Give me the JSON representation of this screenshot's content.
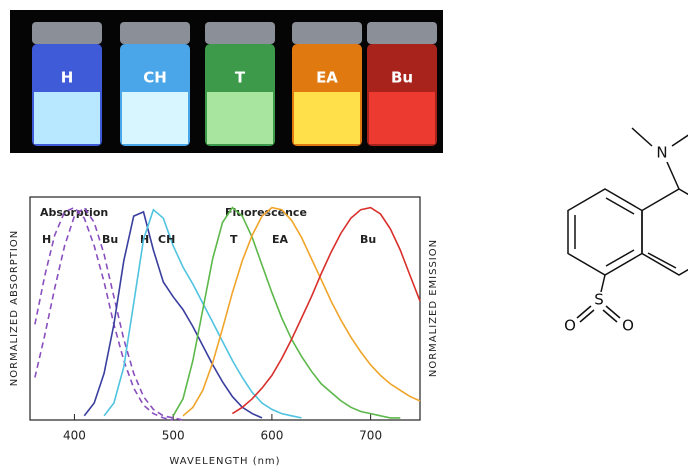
{
  "photo": {
    "labels": [
      "H",
      "CH",
      "T",
      "EA",
      "Bu"
    ]
  },
  "structure": {
    "atoms": [
      "N",
      "S",
      "O",
      "O"
    ]
  },
  "chart_data": {
    "type": "line",
    "annotations": [
      "Absorption",
      "Fluorescence"
    ],
    "xlabel": "WAVELENGTH (nm)",
    "ylabel": "NORMALIZED ABSORPTION",
    "y2label": "NORMALIZED EMISSION",
    "xlim": [
      355,
      750
    ],
    "ylim": [
      0,
      1.05
    ],
    "xticks": [
      400,
      500,
      600,
      700
    ],
    "x": [
      360,
      370,
      380,
      390,
      400,
      410,
      420,
      430,
      440,
      450,
      460,
      470,
      480,
      490,
      500,
      510,
      520,
      530,
      540,
      550,
      560,
      570,
      580,
      590,
      600,
      610,
      620,
      630,
      640,
      650,
      660,
      670,
      680,
      690,
      700,
      710,
      720,
      730,
      740,
      750
    ],
    "series": [
      {
        "name": "H",
        "color": "#8a4fbf",
        "dashed": true,
        "values": [
          0.45,
          0.68,
          0.87,
          0.98,
          1.0,
          0.95,
          0.82,
          0.65,
          0.45,
          0.28,
          0.15,
          0.07,
          0.03,
          0.01,
          0,
          null,
          null,
          null,
          null,
          null,
          null,
          null,
          null,
          null,
          null,
          null,
          null,
          null,
          null,
          null,
          null,
          null,
          null,
          null,
          null,
          null,
          null,
          null,
          null,
          null
        ]
      },
      {
        "name": "Bu",
        "color": "#8a4fbf",
        "dashed": true,
        "values": [
          0.2,
          0.4,
          0.62,
          0.82,
          0.96,
          1.0,
          0.93,
          0.78,
          0.58,
          0.38,
          0.22,
          0.11,
          0.05,
          0.02,
          0.01,
          0,
          null,
          null,
          null,
          null,
          null,
          null,
          null,
          null,
          null,
          null,
          null,
          null,
          null,
          null,
          null,
          null,
          null,
          null,
          null,
          null,
          null,
          null,
          null,
          null
        ]
      },
      {
        "name": "H",
        "color": "#3a3f9e",
        "dashed": false,
        "values": [
          null,
          null,
          null,
          null,
          null,
          0.02,
          0.08,
          0.22,
          0.45,
          0.75,
          0.96,
          0.98,
          0.8,
          0.65,
          0.58,
          0.52,
          0.44,
          0.35,
          0.26,
          0.18,
          0.11,
          0.06,
          0.03,
          0.01,
          null,
          null,
          null,
          null,
          null,
          null,
          null,
          null,
          null,
          null,
          null,
          null,
          null,
          null,
          null,
          null
        ]
      },
      {
        "name": "CH",
        "color": "#4fc3e0",
        "dashed": false,
        "values": [
          null,
          null,
          null,
          null,
          null,
          null,
          null,
          0.02,
          0.08,
          0.25,
          0.55,
          0.85,
          0.99,
          0.95,
          0.82,
          0.72,
          0.64,
          0.55,
          0.46,
          0.37,
          0.28,
          0.2,
          0.13,
          0.08,
          0.05,
          0.03,
          0.02,
          0.01,
          null,
          null,
          null,
          null,
          null,
          null,
          null,
          null,
          null,
          null,
          null,
          null
        ]
      },
      {
        "name": "T",
        "color": "#5cb84a",
        "dashed": false,
        "values": [
          null,
          null,
          null,
          null,
          null,
          null,
          null,
          null,
          null,
          null,
          null,
          null,
          null,
          null,
          0.02,
          0.1,
          0.28,
          0.52,
          0.76,
          0.93,
          1.0,
          0.96,
          0.86,
          0.73,
          0.6,
          0.48,
          0.38,
          0.3,
          0.23,
          0.17,
          0.13,
          0.09,
          0.06,
          0.04,
          0.03,
          0.02,
          0.01,
          0.01,
          null,
          null
        ]
      },
      {
        "name": "EA",
        "color": "#f0a52a",
        "dashed": false,
        "values": [
          null,
          null,
          null,
          null,
          null,
          null,
          null,
          null,
          null,
          null,
          null,
          null,
          null,
          null,
          null,
          0.02,
          0.06,
          0.14,
          0.27,
          0.43,
          0.6,
          0.75,
          0.87,
          0.96,
          1.0,
          0.99,
          0.94,
          0.86,
          0.76,
          0.66,
          0.56,
          0.47,
          0.39,
          0.32,
          0.26,
          0.21,
          0.17,
          0.14,
          0.11,
          0.09
        ]
      },
      {
        "name": "Bu",
        "color": "#d9302c",
        "dashed": false,
        "values": [
          null,
          null,
          null,
          null,
          null,
          null,
          null,
          null,
          null,
          null,
          null,
          null,
          null,
          null,
          null,
          null,
          null,
          null,
          null,
          null,
          0.03,
          0.06,
          0.1,
          0.15,
          0.21,
          0.29,
          0.38,
          0.48,
          0.58,
          0.69,
          0.79,
          0.88,
          0.95,
          0.99,
          1.0,
          0.97,
          0.9,
          0.8,
          0.68,
          0.56
        ]
      }
    ]
  }
}
